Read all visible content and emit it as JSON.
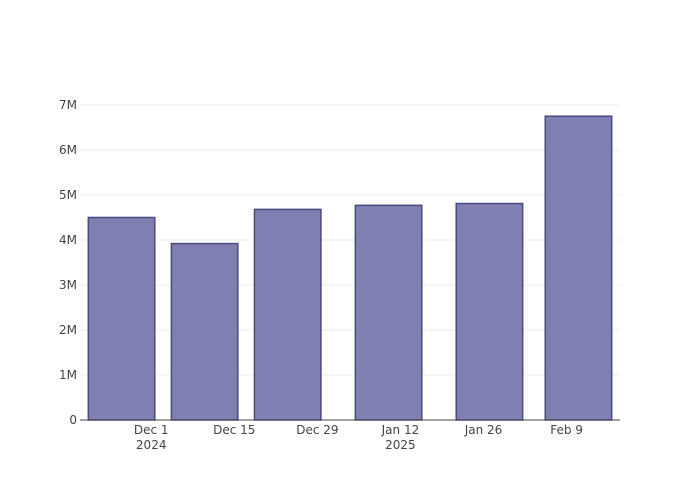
{
  "chart_data": {
    "type": "bar",
    "x": [
      "2024-11-26",
      "2024-12-10",
      "2024-12-24",
      "2025-01-10",
      "2025-01-27",
      "2025-02-11"
    ],
    "values": [
      4500000,
      3920000,
      4680000,
      4770000,
      4810000,
      6750000
    ],
    "color": "#7f7fb2",
    "edge_color": "#4b4b82",
    "xlim": [
      "2024-11-19",
      "2025-02-18"
    ],
    "xticks": [
      {
        "value": "2024-12-01",
        "label": "Dec 1\n2024"
      },
      {
        "value": "2024-12-15",
        "label": "Dec 15"
      },
      {
        "value": "2024-12-29",
        "label": "Dec 29"
      },
      {
        "value": "2025-01-12",
        "label": "Jan 12\n2025"
      },
      {
        "value": "2025-01-26",
        "label": "Jan 26"
      },
      {
        "value": "2025-02-09",
        "label": "Feb 9"
      }
    ],
    "ylim": [
      0,
      7110000
    ],
    "yticks": [
      0,
      {
        "value": 1000000,
        "label": "1M"
      },
      {
        "value": 2000000,
        "label": "2M"
      },
      {
        "value": 3000000,
        "label": "3M"
      },
      {
        "value": 4000000,
        "label": "4M"
      },
      {
        "value": 5000000,
        "label": "5M"
      },
      {
        "value": 6000000,
        "label": "6M"
      },
      {
        "value": 7000000,
        "label": "7M"
      }
    ],
    "grid": true,
    "bar_width_days": 11.2
  }
}
